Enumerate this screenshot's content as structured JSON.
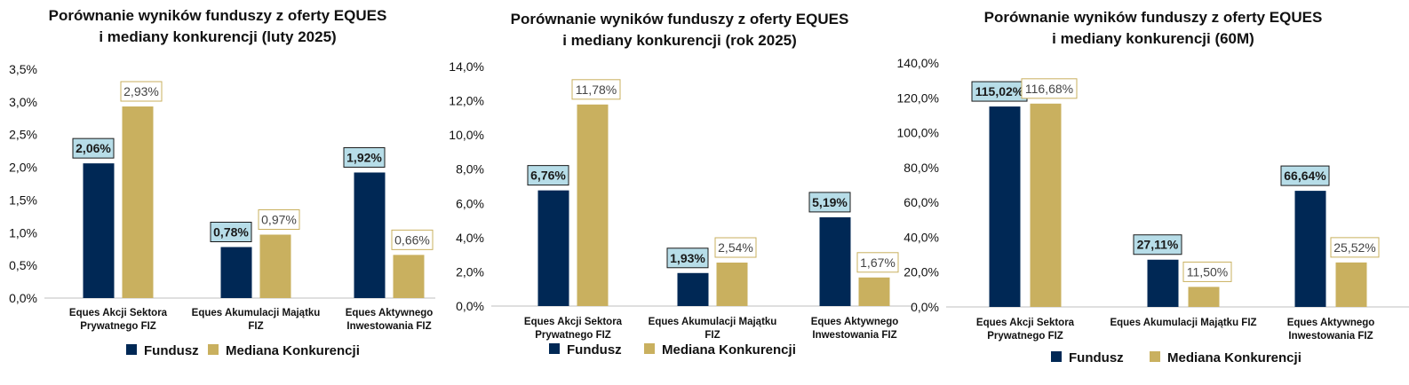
{
  "colors": {
    "fund": "#002855",
    "median": "#C9B05F",
    "fund_label_bg": "#B7DDE8",
    "median_label_border": "#C9B05F"
  },
  "chart_data": [
    {
      "type": "bar",
      "title_line1": "Porównanie wyników funduszy z oferty EQUES",
      "title_line2": "i mediany konkurencji (luty 2025)",
      "categories": [
        [
          "Eques Akcji Sektora",
          "Prywatnego FIZ"
        ],
        [
          "Eques Akumulacji Majątku",
          "FIZ"
        ],
        [
          "Eques Aktywnego",
          "Inwestowania FIZ"
        ]
      ],
      "series": [
        {
          "name": "Fundusz",
          "values": [
            2.06,
            0.78,
            1.92
          ],
          "labels": [
            "2,06%",
            "0,78%",
            "1,92%"
          ]
        },
        {
          "name": "Mediana Konkurencji",
          "values": [
            2.93,
            0.97,
            0.66
          ],
          "labels": [
            "2,93%",
            "0,97%",
            "0,66%"
          ]
        }
      ],
      "ylim": [
        0,
        3.5
      ],
      "yticks": [
        "0,0%",
        "0,5%",
        "1,0%",
        "1,5%",
        "2,0%",
        "2,5%",
        "3,0%",
        "3,5%"
      ],
      "grid": false,
      "legend": "bottom"
    },
    {
      "type": "bar",
      "title_line1": "Porównanie wyników funduszy z oferty EQUES",
      "title_line2": "i mediany konkurencji (rok 2025)",
      "categories": [
        [
          "Eques Akcji Sektora",
          "Prywatnego FIZ"
        ],
        [
          "Eques Akumulacji Majątku",
          "FIZ"
        ],
        [
          "Eques Aktywnego",
          "Inwestowania FIZ"
        ]
      ],
      "series": [
        {
          "name": "Fundusz",
          "values": [
            6.76,
            1.93,
            5.19
          ],
          "labels": [
            "6,76%",
            "1,93%",
            "5,19%"
          ]
        },
        {
          "name": "Mediana Konkurencji",
          "values": [
            11.78,
            2.54,
            1.67
          ],
          "labels": [
            "11,78%",
            "2,54%",
            "1,67%"
          ]
        }
      ],
      "ylim": [
        0,
        14
      ],
      "yticks": [
        "0,0%",
        "2,0%",
        "4,0%",
        "6,0%",
        "8,0%",
        "10,0%",
        "12,0%",
        "14,0%"
      ],
      "grid": false,
      "legend": "bottom"
    },
    {
      "type": "bar",
      "title_line1": "Porównanie wyników funduszy z oferty EQUES",
      "title_line2": "i mediany konkurencji (60M)",
      "categories": [
        [
          "Eques Akcji Sektora",
          "Prywatnego FIZ"
        ],
        [
          "Eques Akumulacji Majątku FIZ"
        ],
        [
          "Eques Aktywnego",
          "Inwestowania FIZ"
        ]
      ],
      "series": [
        {
          "name": "Fundusz",
          "values": [
            115.02,
            27.11,
            66.64
          ],
          "labels": [
            "115,02%",
            "27,11%",
            "66,64%"
          ]
        },
        {
          "name": "Mediana Konkurencji",
          "values": [
            116.68,
            11.5,
            25.52
          ],
          "labels": [
            "116,68%",
            "11,50%",
            "25,52%"
          ]
        }
      ],
      "ylim": [
        0,
        140
      ],
      "yticks": [
        "0,0%",
        "20,0%",
        "40,0%",
        "60,0%",
        "80,0%",
        "100,0%",
        "120,0%",
        "140,0%"
      ],
      "grid": false,
      "legend": "bottom"
    }
  ]
}
